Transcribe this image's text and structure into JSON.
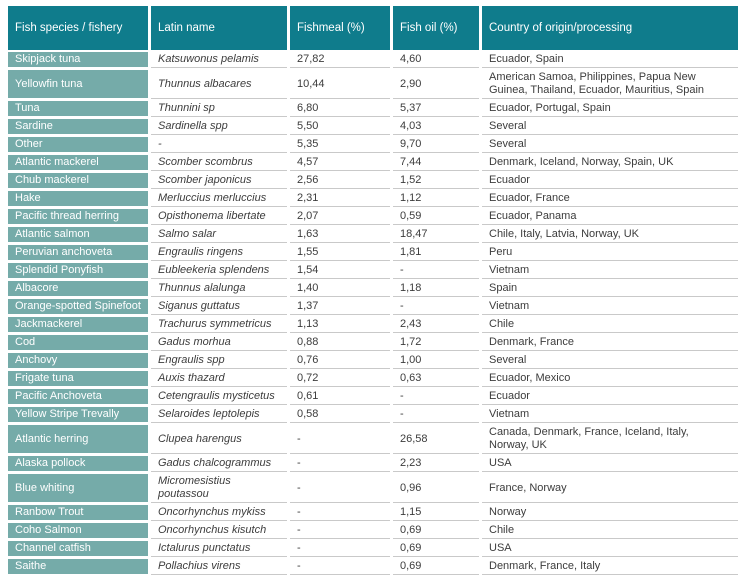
{
  "colors": {
    "header_bg": "#0f7c8c",
    "species_bg": "#75aba9",
    "row_line": "#c9c9c9",
    "body_text": "#3c3c3c",
    "header_text": "#ffffff"
  },
  "table": {
    "columns": [
      {
        "label": "Fish species / fishery"
      },
      {
        "label": "Latin name"
      },
      {
        "label": "Fishmeal (%)"
      },
      {
        "label": "Fish oil (%)"
      },
      {
        "label": "Country of origin/processing"
      }
    ],
    "rows": [
      {
        "species": "Skipjack tuna",
        "latin": "Katsuwonus pelamis",
        "fishmeal": "27,82",
        "fishoil": "4,60",
        "countries": "Ecuador, Spain"
      },
      {
        "species": "Yellowfin tuna",
        "latin": "Thunnus albacares",
        "fishmeal": "10,44",
        "fishoil": "2,90",
        "countries": "American Samoa, Philippines, Papua New Guinea, Thailand, Ecuador, Mauritius, Spain"
      },
      {
        "species": "Tuna",
        "latin": "Thunnini sp",
        "fishmeal": "6,80",
        "fishoil": "5,37",
        "countries": "Ecuador, Portugal, Spain"
      },
      {
        "species": "Sardine",
        "latin": "Sardinella spp",
        "fishmeal": "5,50",
        "fishoil": "4,03",
        "countries": "Several"
      },
      {
        "species": "Other",
        "latin": "-",
        "fishmeal": "5,35",
        "fishoil": "9,70",
        "countries": "Several"
      },
      {
        "species": "Atlantic mackerel",
        "latin": "Scomber scombrus",
        "fishmeal": "4,57",
        "fishoil": "7,44",
        "countries": "Denmark, Iceland, Norway, Spain, UK"
      },
      {
        "species": "Chub mackerel",
        "latin": "Scomber japonicus",
        "fishmeal": "2,56",
        "fishoil": "1,52",
        "countries": "Ecuador"
      },
      {
        "species": "Hake",
        "latin": "Merluccius merluccius",
        "fishmeal": "2,31",
        "fishoil": "1,12",
        "countries": "Ecuador, France"
      },
      {
        "species": "Pacific thread herring",
        "latin": "Opisthonema libertate",
        "fishmeal": "2,07",
        "fishoil": "0,59",
        "countries": "Ecuador, Panama"
      },
      {
        "species": "Atlantic salmon",
        "latin": "Salmo salar",
        "fishmeal": "1,63",
        "fishoil": "18,47",
        "countries": "Chile, Italy, Latvia, Norway, UK"
      },
      {
        "species": "Peruvian anchoveta",
        "latin": "Engraulis ringens",
        "fishmeal": "1,55",
        "fishoil": "1,81",
        "countries": "Peru"
      },
      {
        "species": "Splendid Ponyfish",
        "latin": "Eubleekeria splendens",
        "fishmeal": "1,54",
        "fishoil": "-",
        "countries": "Vietnam"
      },
      {
        "species": "Albacore",
        "latin": "Thunnus alalunga",
        "fishmeal": "1,40",
        "fishoil": "1,18",
        "countries": "Spain"
      },
      {
        "species": "Orange-spotted Spinefoot",
        "latin": "Siganus guttatus",
        "fishmeal": "1,37",
        "fishoil": "-",
        "countries": "Vietnam"
      },
      {
        "species": "Jackmackerel",
        "latin": "Trachurus symmetricus",
        "fishmeal": "1,13",
        "fishoil": "2,43",
        "countries": "Chile"
      },
      {
        "species": "Cod",
        "latin": "Gadus morhua",
        "fishmeal": "0,88",
        "fishoil": "1,72",
        "countries": "Denmark, France"
      },
      {
        "species": "Anchovy",
        "latin": "Engraulis spp",
        "fishmeal": "0,76",
        "fishoil": "1,00",
        "countries": "Several"
      },
      {
        "species": "Frigate tuna",
        "latin": "Auxis thazard",
        "fishmeal": "0,72",
        "fishoil": "0,63",
        "countries": "Ecuador, Mexico"
      },
      {
        "species": "Pacific Anchoveta",
        "latin": "Cetengraulis mysticetus",
        "fishmeal": "0,61",
        "fishoil": "-",
        "countries": "Ecuador"
      },
      {
        "species": "Yellow Stripe Trevally",
        "latin": "Selaroides leptolepis",
        "fishmeal": "0,58",
        "fishoil": "-",
        "countries": "Vietnam"
      },
      {
        "species": "Atlantic herring",
        "latin": "Clupea harengus",
        "fishmeal": "-",
        "fishoil": "26,58",
        "countries": "Canada, Denmark, France, Iceland, Italy, Norway, UK"
      },
      {
        "species": "Alaska pollock",
        "latin": "Gadus chalcogrammus",
        "fishmeal": "-",
        "fishoil": "2,23",
        "countries": "USA"
      },
      {
        "species": "Blue whiting",
        "latin": "Micromesistius poutassou",
        "fishmeal": "-",
        "fishoil": "0,96",
        "countries": "France, Norway"
      },
      {
        "species": "Ranbow Trout",
        "latin": "Oncorhynchus mykiss",
        "fishmeal": "-",
        "fishoil": "1,15",
        "countries": "Norway"
      },
      {
        "species": "Coho Salmon",
        "latin": "Oncorhynchus kisutch",
        "fishmeal": "-",
        "fishoil": "0,69",
        "countries": "Chile"
      },
      {
        "species": "Channel catfish",
        "latin": "Ictalurus punctatus",
        "fishmeal": "-",
        "fishoil": "0,69",
        "countries": "USA"
      },
      {
        "species": "Saithe",
        "latin": "Pollachius virens",
        "fishmeal": "-",
        "fishoil": "0,69",
        "countries": "Denmark, France, Italy"
      }
    ]
  }
}
